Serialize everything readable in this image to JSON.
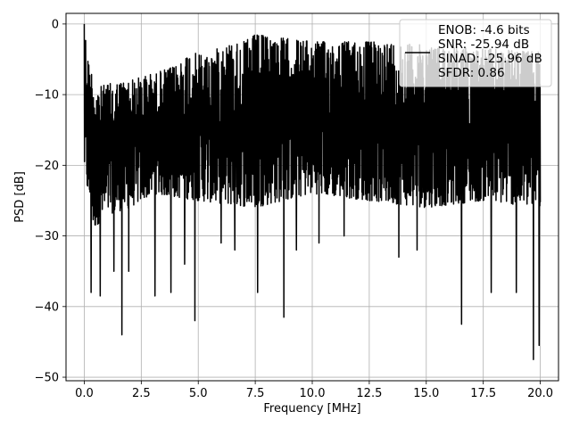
{
  "chart_data": {
    "type": "line",
    "xlabel": "Frequency [MHz]",
    "ylabel": "PSD [dB]",
    "xlim": [
      -0.8,
      20.8
    ],
    "ylim": [
      -50.5,
      1.5
    ],
    "x_ticks": [
      0.0,
      2.5,
      5.0,
      7.5,
      10.0,
      12.5,
      15.0,
      17.5,
      20.0
    ],
    "x_tick_labels": [
      "0.0",
      "2.5",
      "5.0",
      "7.5",
      "10.0",
      "12.5",
      "15.0",
      "17.5",
      "20.0"
    ],
    "y_ticks": [
      0,
      -10,
      -20,
      -30,
      -40,
      -50
    ],
    "y_tick_labels": [
      "0",
      "−10",
      "−20",
      "−30",
      "−40",
      "−50"
    ],
    "grid": true,
    "legend_position": "top-right",
    "legend_entries": [
      "ENOB: -4.6 bits",
      "SNR: -25.94 dB",
      "SINAD: -25.96 dB",
      "SFDR: 0.86"
    ],
    "series": [
      {
        "color": "#000000",
        "x_range": [
          0,
          20
        ],
        "upper_envelope": [
          [
            0.0,
            0.0
          ],
          [
            0.2,
            -5.5
          ],
          [
            0.6,
            -9.0
          ],
          [
            1.0,
            -8.5
          ],
          [
            2.0,
            -8.0
          ],
          [
            3.0,
            -7.0
          ],
          [
            4.0,
            -6.0
          ],
          [
            4.6,
            -4.0
          ],
          [
            5.5,
            -4.5
          ],
          [
            6.0,
            -3.0
          ],
          [
            7.0,
            -2.5
          ],
          [
            7.5,
            -1.5
          ],
          [
            10.0,
            -2.5
          ],
          [
            12.5,
            -2.5
          ],
          [
            15.0,
            -3.0
          ],
          [
            17.5,
            -3.5
          ],
          [
            20.0,
            -4.0
          ]
        ],
        "typical_lower_envelope": [
          [
            0.0,
            -21
          ],
          [
            0.4,
            -29
          ],
          [
            1.0,
            -27
          ],
          [
            2.0,
            -26
          ],
          [
            3.0,
            -24
          ],
          [
            5.0,
            -25
          ],
          [
            7.5,
            -26
          ],
          [
            10.0,
            -24
          ],
          [
            12.5,
            -25
          ],
          [
            15.0,
            -26
          ],
          [
            17.5,
            -25
          ],
          [
            20.0,
            -26
          ]
        ],
        "deep_dips": [
          [
            0.3,
            -38.0
          ],
          [
            0.7,
            -38.5
          ],
          [
            1.3,
            -35.0
          ],
          [
            1.65,
            -44.0
          ],
          [
            1.95,
            -35.0
          ],
          [
            3.1,
            -38.5
          ],
          [
            3.8,
            -38.0
          ],
          [
            4.4,
            -34.0
          ],
          [
            4.85,
            -42.0
          ],
          [
            6.0,
            -31.0
          ],
          [
            6.6,
            -32.0
          ],
          [
            7.6,
            -38.0
          ],
          [
            8.75,
            -41.5
          ],
          [
            9.3,
            -32.0
          ],
          [
            10.3,
            -31.0
          ],
          [
            11.4,
            -30.0
          ],
          [
            13.8,
            -33.0
          ],
          [
            14.6,
            -32.0
          ],
          [
            16.55,
            -42.5
          ],
          [
            17.85,
            -38.0
          ],
          [
            18.95,
            -38.0
          ],
          [
            19.7,
            -47.5
          ],
          [
            19.95,
            -45.5
          ]
        ],
        "sample_count": 2000
      }
    ]
  }
}
